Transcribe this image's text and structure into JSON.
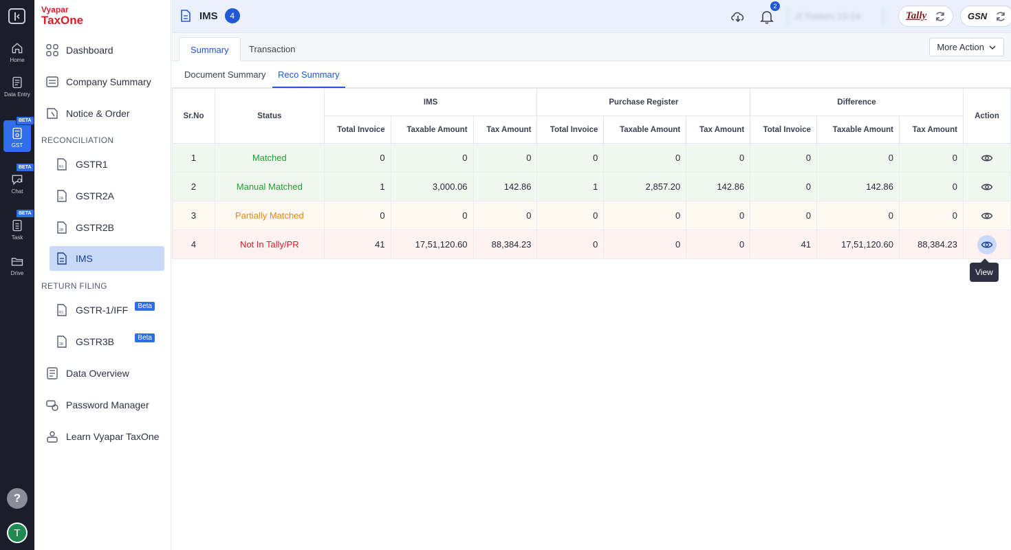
{
  "rail": {
    "items": [
      {
        "label": "Home",
        "icon": "home-icon"
      },
      {
        "label": "Data Entry",
        "icon": "data-entry-icon"
      },
      {
        "label": "GST",
        "icon": "gst-icon",
        "badge": "BETA"
      },
      {
        "label": "Chat",
        "icon": "chat-icon",
        "badge": "BETA"
      },
      {
        "label": "Task",
        "icon": "task-icon",
        "badge": "BETA"
      },
      {
        "label": "Drive",
        "icon": "drive-icon"
      }
    ],
    "help": "?",
    "avatar": "T"
  },
  "brand": {
    "line1": "Vyapar",
    "line2": "TaxOne"
  },
  "sidebar": {
    "top": [
      {
        "label": "Dashboard",
        "icon": "grid-icon"
      },
      {
        "label": "Company Summary",
        "icon": "summary-icon"
      },
      {
        "label": "Notice & Order",
        "icon": "notice-icon"
      }
    ],
    "reconciliation_title": "RECONCILIATION",
    "reconciliation": [
      {
        "label": "GSTR1",
        "icon": "r1-doc-icon"
      },
      {
        "label": "GSTR2A",
        "icon": "2a-doc-icon"
      },
      {
        "label": "GSTR2B",
        "icon": "2b-doc-icon"
      },
      {
        "label": "IMS",
        "icon": "ims-doc-icon",
        "active": true
      }
    ],
    "return_title": "RETURN FILING",
    "returns": [
      {
        "label": "GSTR-1/IFF",
        "icon": "r1-doc-icon",
        "badge": "Beta"
      },
      {
        "label": "GSTR3B",
        "icon": "3b-doc-icon",
        "badge": "Beta"
      }
    ],
    "bottom": [
      {
        "label": "Data Overview",
        "icon": "data-overview-icon"
      },
      {
        "label": "Password Manager",
        "icon": "password-icon"
      },
      {
        "label": "Learn Vyapar TaxOne",
        "icon": "learn-icon"
      }
    ]
  },
  "topbar": {
    "title": "IMS",
    "count": "4",
    "notifications": "2",
    "company": "JI Traders 23-24",
    "tally": "Tally",
    "gsn": "GSN"
  },
  "tabs": [
    "Summary",
    "Transaction"
  ],
  "more_action": "More Action",
  "subtabs": [
    "Document Summary",
    "Reco Summary"
  ],
  "table": {
    "headers": {
      "srno": "Sr.No",
      "status": "Status",
      "ims": "IMS",
      "pr": "Purchase Register",
      "diff": "Difference",
      "action": "Action",
      "total_invoice": "Total Invoice",
      "taxable_amount": "Taxable Amount",
      "tax_amount": "Tax Amount"
    },
    "rows": [
      {
        "sr": "1",
        "status": "Matched",
        "ims": [
          "0",
          "0",
          "0"
        ],
        "pr": [
          "0",
          "0",
          "0"
        ],
        "diff": [
          "0",
          "0",
          "0"
        ]
      },
      {
        "sr": "2",
        "status": "Manual Matched",
        "ims": [
          "1",
          "3,000.06",
          "142.86"
        ],
        "pr": [
          "1",
          "2,857.20",
          "142.86"
        ],
        "diff": [
          "0",
          "142.86",
          "0"
        ]
      },
      {
        "sr": "3",
        "status": "Partially Matched",
        "ims": [
          "0",
          "0",
          "0"
        ],
        "pr": [
          "0",
          "0",
          "0"
        ],
        "diff": [
          "0",
          "0",
          "0"
        ]
      },
      {
        "sr": "4",
        "status": "Not In Tally/PR",
        "ims": [
          "41",
          "17,51,120.60",
          "88,384.23"
        ],
        "pr": [
          "0",
          "0",
          "0"
        ],
        "diff": [
          "41",
          "17,51,120.60",
          "88,384.23"
        ]
      }
    ]
  },
  "tooltip": "View",
  "colors": {
    "accent": "#2158d6",
    "matched": "#1e9e2e",
    "partial": "#e6890f",
    "missing": "#d81e2c"
  }
}
